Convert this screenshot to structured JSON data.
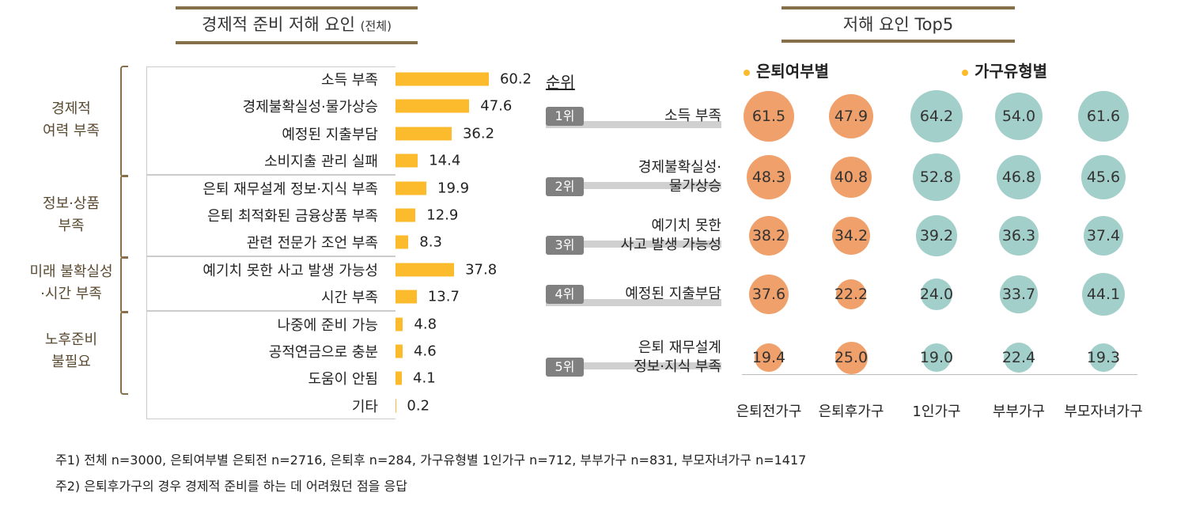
{
  "chart_data": [
    {
      "type": "bar",
      "orientation": "horizontal",
      "title": "경제적 준비 저해 요인",
      "title_suffix": "(전체)",
      "groups": [
        {
          "name": "경제적\n여력 부족",
          "lines": [
            "경제적",
            "여력 부족"
          ],
          "items": [
            {
              "label": "소득 부족",
              "value": 60.2
            },
            {
              "label": "경제불확실성·물가상승",
              "value": 47.6
            },
            {
              "label": "예정된 지출부담",
              "value": 36.2
            },
            {
              "label": "소비지출 관리 실패",
              "value": 14.4
            }
          ]
        },
        {
          "name": "정보·상품 부족",
          "lines": [
            "정보·상품",
            "부족"
          ],
          "items": [
            {
              "label": "은퇴 재무설계 정보·지식 부족",
              "value": 19.9
            },
            {
              "label": "은퇴 최적화된 금융상품 부족",
              "value": 12.9
            },
            {
              "label": "관련 전문가 조언 부족",
              "value": 8.3
            }
          ]
        },
        {
          "name": "미래 불확실성·시간 부족",
          "lines": [
            "미래 불확실성",
            "·시간 부족"
          ],
          "items": [
            {
              "label": "예기치 못한 사고 발생 가능성",
              "value": 37.8
            },
            {
              "label": "시간 부족",
              "value": 13.7
            }
          ]
        },
        {
          "name": "노후준비 불필요",
          "lines": [
            "노후준비",
            "불필요"
          ],
          "items": [
            {
              "label": "나중에 준비 가능",
              "value": 4.8
            },
            {
              "label": "공적연금으로 충분",
              "value": 4.6
            },
            {
              "label": "도움이 안됨",
              "value": 4.1
            }
          ]
        },
        {
          "name": "",
          "lines": [],
          "items": [
            {
              "label": "기타",
              "value": 0.2
            }
          ]
        }
      ],
      "bar_color": "#fbbb2d"
    },
    {
      "type": "bubble",
      "title": "저해 요인 Top5",
      "rank_header": "순위",
      "group_headers": [
        "은퇴여부별",
        "가구유형별"
      ],
      "columns": [
        "은퇴전가구",
        "은퇴후가구",
        "1인가구",
        "부부가구",
        "부모자녀가구"
      ],
      "column_colors": [
        "#f0a06a",
        "#f0a06a",
        "#a3cfca",
        "#a3cfca",
        "#a3cfca"
      ],
      "rows": [
        {
          "rank": "1위",
          "lines": [
            "소득 부족"
          ],
          "values": [
            61.5,
            47.9,
            64.2,
            54.0,
            61.6
          ]
        },
        {
          "rank": "2위",
          "lines": [
            "경제불확실성·",
            "물가상승"
          ],
          "values": [
            48.3,
            40.8,
            52.8,
            46.8,
            45.6
          ]
        },
        {
          "rank": "3위",
          "lines": [
            "예기치 못한",
            "사고 발생 가능성"
          ],
          "values": [
            38.2,
            34.2,
            39.2,
            36.3,
            37.4
          ]
        },
        {
          "rank": "4위",
          "lines": [
            "예정된 지출부담"
          ],
          "values": [
            37.6,
            22.2,
            24.0,
            33.7,
            44.1
          ]
        },
        {
          "rank": "5위",
          "lines": [
            "은퇴 재무설계",
            "정보·지식 부족"
          ],
          "values": [
            19.4,
            25.0,
            19.0,
            22.4,
            19.3
          ]
        }
      ]
    }
  ],
  "notes": [
    "주1) 전체 n=3000, 은퇴여부별 은퇴전 n=2716, 은퇴후 n=284, 가구유형별 1인가구 n=712, 부부가구 n=831, 부모자녀가구 n=1417",
    "주2) 은퇴후가구의 경우 경제적 준비를 하는 데 어려웠던 점을 응답"
  ]
}
